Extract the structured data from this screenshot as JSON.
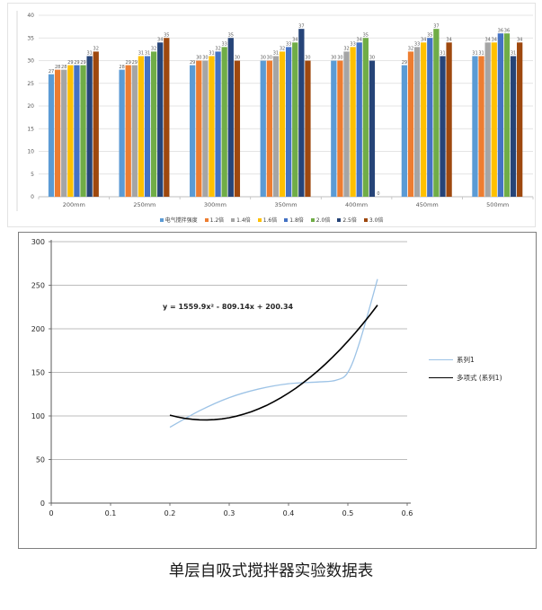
{
  "caption": "单层自吸式搅拌器实验数据表",
  "chart_data": [
    {
      "type": "bar",
      "title": "",
      "xlabel": "",
      "ylabel": "",
      "categories": [
        "200mm",
        "250mm",
        "300mm",
        "350mm",
        "400mm",
        "450mm",
        "500mm"
      ],
      "series": [
        {
          "name": "电气搅拌强度",
          "color": "#5B9BD5",
          "values": [
            27,
            28,
            29,
            30,
            30,
            29,
            31
          ]
        },
        {
          "name": "1.2倍",
          "color": "#ED7D31",
          "values": [
            28,
            29,
            30,
            30,
            30,
            32,
            31
          ]
        },
        {
          "name": "1.4倍",
          "color": "#A5A5A5",
          "values": [
            28,
            29,
            30,
            31,
            32,
            33,
            34
          ]
        },
        {
          "name": "1.6倍",
          "color": "#FFC000",
          "values": [
            29,
            31,
            31,
            32,
            33,
            34,
            34
          ]
        },
        {
          "name": "1.8倍",
          "color": "#4472C4",
          "values": [
            29,
            31,
            32,
            33,
            34,
            35,
            36
          ]
        },
        {
          "name": "2.0倍",
          "color": "#70AD47",
          "values": [
            29,
            32,
            33,
            34,
            35,
            37,
            36
          ]
        },
        {
          "name": "2.5倍",
          "color": "#264478",
          "values": [
            31,
            34,
            35,
            37,
            30,
            31,
            31
          ]
        },
        {
          "name": "3.0倍",
          "color": "#9E480E",
          "values": [
            32,
            35,
            30,
            30,
            0,
            34,
            34
          ]
        }
      ],
      "ylim": [
        0,
        40
      ],
      "ytick": 5,
      "grid": true,
      "value_labels": true,
      "legend_position": "bottom"
    },
    {
      "type": "line",
      "title": "",
      "xlabel": "",
      "ylabel": "",
      "series": [
        {
          "name": "系列1",
          "color": "#9DC3E6",
          "points": [
            [
              0.2,
              87
            ],
            [
              0.25,
              106
            ],
            [
              0.3,
              121
            ],
            [
              0.35,
              131
            ],
            [
              0.4,
              137
            ],
            [
              0.45,
              139
            ],
            [
              0.48,
              141
            ],
            [
              0.5,
              150
            ],
            [
              0.52,
              185
            ],
            [
              0.55,
              257
            ]
          ]
        }
      ],
      "trendline": {
        "name": "多项式 (系列1)",
        "color": "#000000",
        "equation": "y = 1559.9x² - 809.14x + 200.34",
        "coefficients": [
          1559.9,
          -809.14,
          200.34
        ],
        "x_range": [
          0.2,
          0.55
        ]
      },
      "xlim": [
        0,
        0.6
      ],
      "xtick": 0.1,
      "ylim": [
        0,
        300
      ],
      "ytick": 50,
      "grid": true,
      "legend_position": "right"
    }
  ]
}
